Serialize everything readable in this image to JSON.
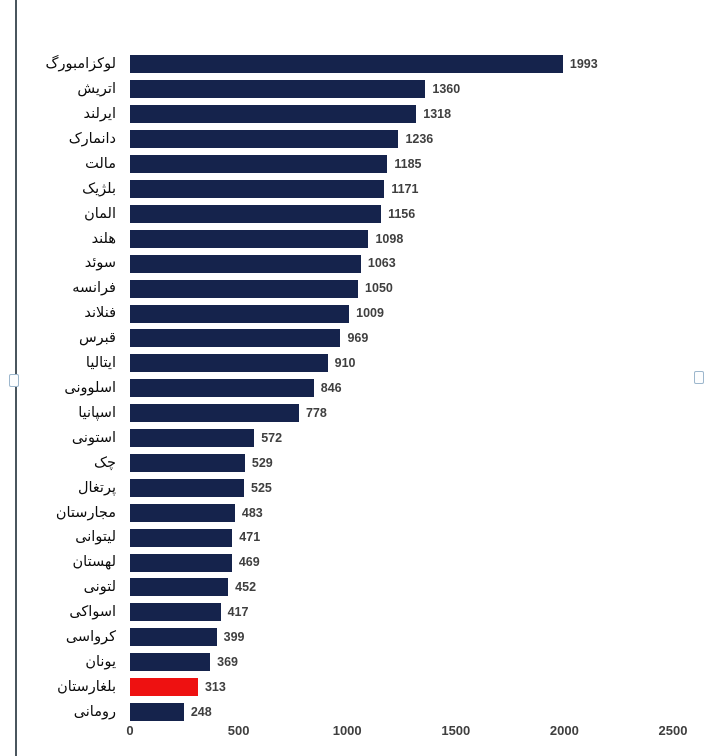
{
  "chart_data": {
    "type": "bar",
    "orientation": "horizontal",
    "title": "",
    "categories": [
      "لوکزامبورگ",
      "اتریش",
      "ایرلند",
      "دانمارک",
      "مالت",
      "بلژیک",
      "المان",
      "هلند",
      "سوئد",
      "فرانسه",
      "فنلاند",
      "قبرس",
      "ایتالیا",
      "اسلوونی",
      "اسپانیا",
      "استونی",
      "چک",
      "پرتغال",
      "مجارستان",
      "لیتوانی",
      "لهستان",
      "لتونی",
      "اسواکی",
      "کرواسی",
      "یونان",
      "بلغارستان",
      "رومانی"
    ],
    "values": [
      1993,
      1360,
      1318,
      1236,
      1185,
      1171,
      1156,
      1098,
      1063,
      1050,
      1009,
      969,
      910,
      846,
      778,
      572,
      529,
      525,
      483,
      471,
      469,
      452,
      417,
      399,
      369,
      313,
      248
    ],
    "data_labels_shown": true,
    "highlight_index": 25,
    "highlighted_category": "بلغارستان",
    "bar_color": "#15234c",
    "highlight_color": "#ee1111",
    "value_label_color": "#3f3f3f",
    "axis_label_color": "#3f3f3f",
    "x_ticks": [
      0,
      500,
      1000,
      1500,
      2000,
      2500
    ],
    "xlim": [
      0,
      2500
    ],
    "grid": false,
    "legend": false
  }
}
